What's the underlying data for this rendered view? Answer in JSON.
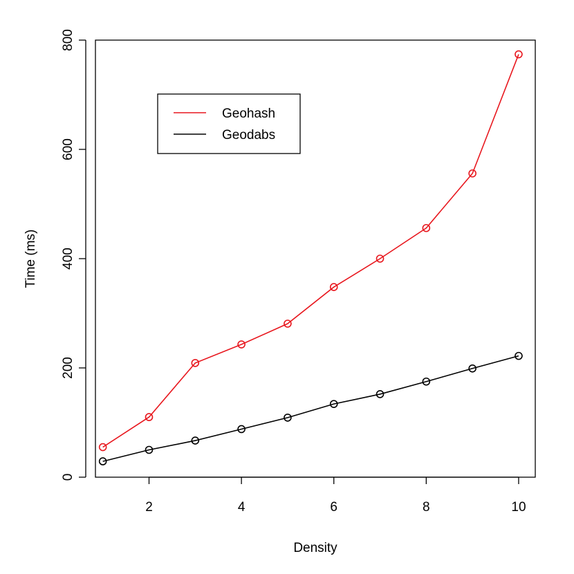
{
  "chart_data": {
    "type": "line",
    "title": "",
    "xlabel": "Density",
    "ylabel": "Time (ms)",
    "xlim": [
      0.84,
      10.36
    ],
    "ylim": [
      0,
      800
    ],
    "x_ticks": [
      2,
      4,
      6,
      8,
      10
    ],
    "y_ticks": [
      0,
      200,
      400,
      600,
      800
    ],
    "grid": false,
    "legend_position": "top-left",
    "x": [
      1,
      2,
      3,
      4,
      5,
      6,
      7,
      8,
      9,
      10
    ],
    "series": [
      {
        "name": "Geohash",
        "color": "#e8171e",
        "marker": "open-circle",
        "values": [
          55,
          110,
          209,
          243,
          281,
          348,
          400,
          456,
          556,
          774
        ]
      },
      {
        "name": "Geodabs",
        "color": "#000000",
        "marker": "open-circle",
        "values": [
          29,
          50,
          67,
          88,
          109,
          134,
          152,
          175,
          199,
          222
        ]
      }
    ]
  }
}
